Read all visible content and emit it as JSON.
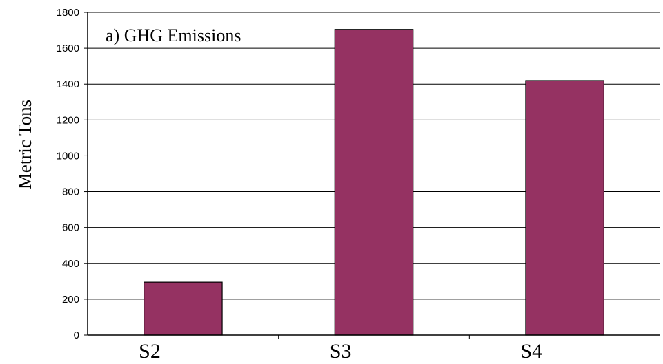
{
  "chart_data": {
    "type": "bar",
    "title": "a) GHG Emissions",
    "xlabel": "",
    "ylabel": "Metric Tons",
    "categories": [
      "S2",
      "S3",
      "S4"
    ],
    "series": [
      {
        "values": [
          295,
          1705,
          1420
        ],
        "color": "#953262"
      }
    ],
    "ylim": [
      0,
      1800
    ],
    "yticks": [
      0,
      200,
      400,
      600,
      800,
      1000,
      1200,
      1400,
      1600,
      1800
    ],
    "grid": true,
    "legend": "none"
  }
}
